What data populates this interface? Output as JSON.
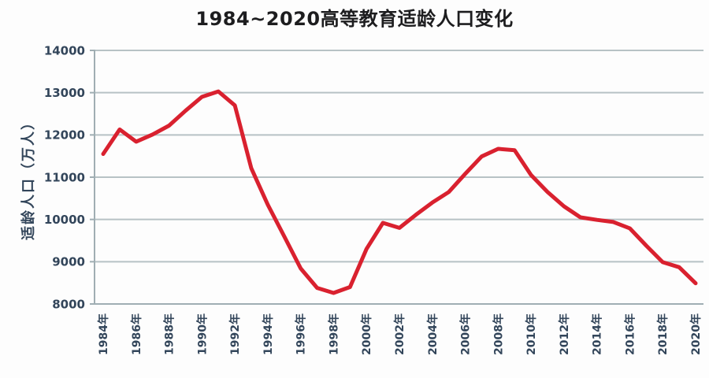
{
  "page": {
    "background": "#fdfdfd"
  },
  "chart_data": {
    "type": "line",
    "title": "1984~2020高等教育适龄人口变化",
    "ylabel": "适龄人口（万人）",
    "xlabel": "",
    "series_name": "适龄人口",
    "x_label_suffix": "年",
    "years": [
      1984,
      1985,
      1986,
      1987,
      1988,
      1989,
      1990,
      1991,
      1992,
      1993,
      1994,
      1995,
      1996,
      1997,
      1998,
      1999,
      2000,
      2001,
      2002,
      2003,
      2004,
      2005,
      2006,
      2007,
      2008,
      2009,
      2010,
      2011,
      2012,
      2013,
      2014,
      2015,
      2016,
      2017,
      2018,
      2019,
      2020
    ],
    "values": [
      11550,
      12130,
      11840,
      12010,
      12220,
      12570,
      12900,
      13030,
      12700,
      11210,
      10350,
      9600,
      8840,
      8380,
      8260,
      8400,
      9300,
      9920,
      9800,
      10110,
      10400,
      10650,
      11080,
      11490,
      11670,
      11640,
      11050,
      10650,
      10310,
      10050,
      9990,
      9940,
      9790,
      9380,
      8990,
      8870,
      8490
    ],
    "ylim": [
      8000,
      14000
    ],
    "ytick_step": 1000,
    "yticks": [
      8000,
      9000,
      10000,
      11000,
      12000,
      13000,
      14000
    ],
    "xtick_years": [
      1984,
      1986,
      1988,
      1990,
      1992,
      1994,
      1996,
      1998,
      2000,
      2002,
      2004,
      2006,
      2008,
      2010,
      2012,
      2014,
      2016,
      2018,
      2020
    ],
    "grid": "horizontal",
    "legend_position": "none",
    "colors": {
      "line": "#d9212f",
      "grid": "#b7c2c5",
      "axis": "#a0aeb3",
      "tick_label": "#32455a",
      "title": "#1d1d1f"
    }
  }
}
